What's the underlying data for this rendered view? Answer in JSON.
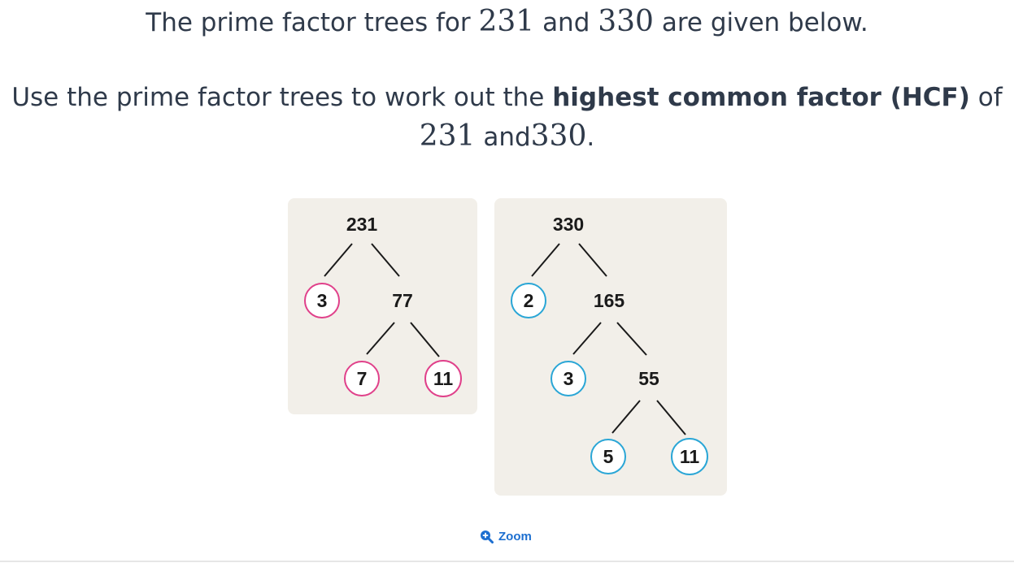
{
  "question": {
    "line1_pre": "The prime factor trees for",
    "num_a": "231",
    "and_word": "and",
    "num_b": "330",
    "line1_post": "are given below.",
    "line2_pre": "Use the prime factor trees to work out the",
    "line2_bold": "highest common factor (HCF)",
    "of_word": "of",
    "end_punct": "."
  },
  "trees": {
    "a": {
      "root": "231",
      "n3": "3",
      "n77": "77",
      "n7": "7",
      "n11": "11",
      "prime_ring_color": "#e0408a"
    },
    "b": {
      "root": "330",
      "n2": "2",
      "n165": "165",
      "n3": "3",
      "n55": "55",
      "n5": "5",
      "n11": "11",
      "prime_ring_color": "#2aa6d6"
    }
  },
  "zoom": {
    "label": "Zoom",
    "icon": "zoom-in-magnifier-icon"
  }
}
